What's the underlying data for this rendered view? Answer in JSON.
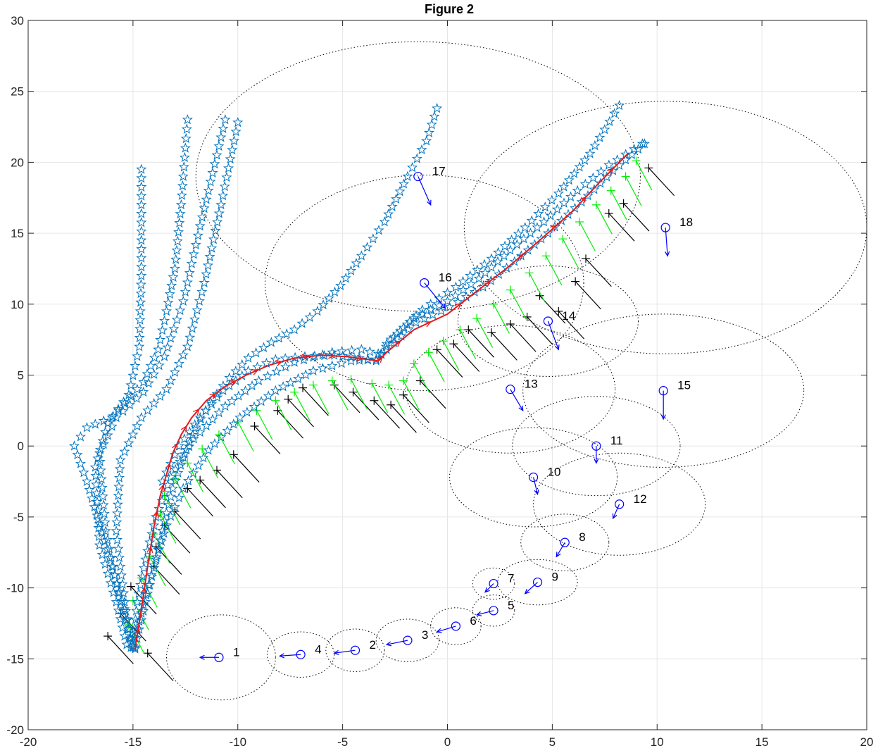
{
  "chart_data": {
    "type": "scatter",
    "title": "Figure 2",
    "xlabel": "",
    "ylabel": "",
    "xlim": [
      -20,
      20
    ],
    "ylim": [
      -20,
      30
    ],
    "grid": true,
    "x_ticks": [
      "-20",
      "-15",
      "-10",
      "-5",
      "0",
      "5",
      "10",
      "15",
      "20"
    ],
    "y_ticks": [
      "-20",
      "-15",
      "-10",
      "-5",
      "0",
      "5",
      "10",
      "15",
      "20",
      "25",
      "30"
    ],
    "colors": {
      "trajectory": "#e41a1c",
      "stars": "#0072bd",
      "landmark": "#0000ff",
      "green_markers": "#00ee00",
      "black_markers": "#000000",
      "ellipse": "#000000",
      "grid": "#e6e6e6"
    },
    "trajectory": {
      "x": [
        -14.9,
        -14.6,
        -14.3,
        -14.0,
        -13.7,
        -13.4,
        -13.1,
        -12.7,
        -12.2,
        -11.5,
        -10.6,
        -9.6,
        -8.5,
        -7.3,
        -6.0,
        -4.8,
        -3.3,
        -2.9,
        -1.6,
        0.0,
        1.3,
        2.8,
        4.4,
        6.0,
        7.2,
        8.6
      ],
      "y": [
        -14.3,
        -11.5,
        -8.5,
        -5.7,
        -3.5,
        -2.0,
        -0.5,
        0.8,
        2.0,
        3.2,
        4.2,
        5.0,
        5.7,
        6.2,
        6.4,
        6.3,
        6.0,
        6.6,
        8.2,
        9.3,
        10.8,
        12.5,
        14.5,
        16.6,
        18.5,
        20.6
      ]
    },
    "star_paths": [
      {
        "x": [
          -14.9,
          -15.4,
          -16.0,
          -16.6,
          -17.2,
          -17.8,
          -17.2,
          -16.0,
          -14.5,
          -13.8,
          -13.4,
          -13.0,
          -12.7,
          -12.4
        ],
        "y": [
          -14.3,
          -11.5,
          -8.5,
          -5.5,
          -2.5,
          0.0,
          1.3,
          2.0,
          4.5,
          6.8,
          9.5,
          12.5,
          17.0,
          23.0
        ]
      },
      {
        "x": [
          -15.3,
          -15.8,
          -16.6,
          -16.8,
          -16.2,
          -15.2,
          -14.7,
          -14.6,
          -14.6
        ],
        "y": [
          -14.0,
          -11.0,
          -7.0,
          -1.5,
          1.6,
          3.6,
          7.0,
          12.0,
          19.5
        ]
      },
      {
        "x": [
          -15.0,
          -15.6,
          -16.3,
          -16.6,
          -15.8,
          -14.5,
          -13.5,
          -12.6,
          -11.8,
          -10.6
        ],
        "y": [
          -14.2,
          -11.0,
          -6.0,
          -0.5,
          2.0,
          3.8,
          6.3,
          10.2,
          15.5,
          23.0
        ]
      },
      {
        "x": [
          -15.1,
          -15.4,
          -15.8,
          -15.6,
          -14.6,
          -13.4,
          -12.4,
          -11.6,
          -10.8,
          -10.0
        ],
        "y": [
          -14.2,
          -11.0,
          -6.0,
          -1.0,
          2.0,
          4.0,
          7.0,
          11.5,
          17.0,
          22.8
        ]
      },
      {
        "x": [
          -15.0,
          -14.8,
          -14.4,
          -13.9,
          -13.2,
          -12.1,
          -10.6,
          -9.0,
          -7.3,
          -5.5,
          -4.1,
          -3.3,
          -2.9,
          -1.6,
          0.0,
          1.5,
          3.0,
          4.6,
          6.2,
          7.7,
          9.3
        ],
        "y": [
          -14.1,
          -11.0,
          -8.0,
          -5.0,
          -2.2,
          0.5,
          2.8,
          4.6,
          5.9,
          6.6,
          6.8,
          6.5,
          7.2,
          9.0,
          10.2,
          11.8,
          13.8,
          15.8,
          18.0,
          19.8,
          21.3
        ]
      },
      {
        "x": [
          -15.0,
          -14.5,
          -14.0,
          -13.4,
          -12.6,
          -11.4,
          -9.9,
          -8.2,
          -6.4,
          -4.6,
          -3.4,
          -2.9,
          -1.5,
          0.1,
          1.7,
          3.2,
          4.8,
          6.4,
          7.9,
          9.4
        ],
        "y": [
          -14.1,
          -11.2,
          -8.4,
          -5.6,
          -3.0,
          -0.3,
          2.0,
          3.9,
          5.3,
          6.0,
          6.1,
          6.8,
          8.7,
          9.8,
          11.2,
          13.0,
          15.0,
          17.2,
          19.4,
          21.3
        ]
      },
      {
        "x": [
          -14.9,
          -14.4,
          -13.9,
          -13.5,
          -13.1,
          -12.6,
          -12.0,
          -11.3,
          -10.4,
          -9.5,
          -8.4,
          -7.3,
          -6.2,
          -5.1,
          -4.1,
          -3.0,
          -1.9,
          -1.0,
          -0.5
        ],
        "y": [
          -14.2,
          -11.0,
          -8.0,
          -5.3,
          -3.0,
          -0.8,
          1.3,
          3.1,
          4.8,
          6.2,
          7.3,
          8.2,
          9.5,
          11.3,
          13.4,
          15.8,
          19.0,
          21.5,
          23.8
        ]
      },
      {
        "x": [
          -13.6,
          -12.8,
          -11.8,
          -10.7,
          -9.5,
          -8.2,
          -6.8,
          -5.4,
          -4.2,
          -3.4,
          -2.7,
          -1.2,
          0.4,
          2.1,
          3.7,
          5.3,
          6.8,
          8.2
        ],
        "y": [
          -2.5,
          0.0,
          2.0,
          3.9,
          5.3,
          6.1,
          6.3,
          6.4,
          6.2,
          6.0,
          7.5,
          9.6,
          11.2,
          13.2,
          15.4,
          17.8,
          20.6,
          24.0
        ]
      }
    ],
    "landmarks": [
      {
        "label": "1",
        "x": -10.9,
        "y": -14.9,
        "dx": -0.9,
        "dy": 0.0,
        "ellipse": {
          "cx": -10.8,
          "cy": -14.9,
          "rx": 2.6,
          "ry": 3.0
        }
      },
      {
        "label": "2",
        "x": -4.4,
        "y": -14.4,
        "dx": -1.0,
        "dy": -0.2,
        "ellipse": {
          "cx": -4.4,
          "cy": -14.4,
          "rx": 1.4,
          "ry": 1.5
        }
      },
      {
        "label": "3",
        "x": -1.9,
        "y": -13.7,
        "dx": -1.0,
        "dy": -0.3,
        "ellipse": {
          "cx": -1.9,
          "cy": -13.7,
          "rx": 1.5,
          "ry": 1.5
        }
      },
      {
        "label": "4",
        "x": -7.0,
        "y": -14.7,
        "dx": -1.0,
        "dy": -0.1,
        "ellipse": {
          "cx": -7.0,
          "cy": -14.7,
          "rx": 1.6,
          "ry": 1.6
        }
      },
      {
        "label": "5",
        "x": 2.2,
        "y": -11.6,
        "dx": -0.8,
        "dy": -0.3,
        "ellipse": {
          "cx": 2.2,
          "cy": -11.6,
          "rx": 1.0,
          "ry": 1.1
        }
      },
      {
        "label": "6",
        "x": 0.4,
        "y": -12.7,
        "dx": -0.9,
        "dy": -0.4,
        "ellipse": {
          "cx": 0.4,
          "cy": -12.7,
          "rx": 1.2,
          "ry": 1.3
        }
      },
      {
        "label": "7",
        "x": 2.2,
        "y": -9.7,
        "dx": -0.4,
        "dy": -0.6,
        "ellipse": {
          "cx": 2.2,
          "cy": -9.7,
          "rx": 1.0,
          "ry": 1.1
        }
      },
      {
        "label": "8",
        "x": 5.6,
        "y": -6.8,
        "dx": -0.4,
        "dy": -1.0,
        "ellipse": {
          "cx": 5.6,
          "cy": -6.8,
          "rx": 2.1,
          "ry": 2.0
        }
      },
      {
        "label": "9",
        "x": 4.3,
        "y": -9.6,
        "dx": -0.6,
        "dy": -0.8,
        "ellipse": {
          "cx": 4.3,
          "cy": -9.6,
          "rx": 1.9,
          "ry": 1.6
        }
      },
      {
        "label": "10",
        "x": 4.1,
        "y": -2.2,
        "dx": 0.2,
        "dy": -1.2,
        "ellipse": {
          "cx": 4.1,
          "cy": -2.2,
          "rx": 4.0,
          "ry": 3.5
        }
      },
      {
        "label": "11",
        "x": 7.1,
        "y": 0.0,
        "dx": 0.0,
        "dy": -1.2,
        "ellipse": {
          "cx": 7.1,
          "cy": 0.0,
          "rx": 4.0,
          "ry": 3.5
        }
      },
      {
        "label": "12",
        "x": 8.2,
        "y": -4.1,
        "dx": -0.3,
        "dy": -1.0,
        "ellipse": {
          "cx": 8.2,
          "cy": -4.1,
          "rx": 4.1,
          "ry": 3.6
        }
      },
      {
        "label": "13",
        "x": 3.0,
        "y": 4.0,
        "dx": 0.6,
        "dy": -1.5,
        "ellipse": {
          "cx": 3.0,
          "cy": 4.0,
          "rx": 5.0,
          "ry": 4.5
        }
      },
      {
        "label": "14",
        "x": 4.8,
        "y": 8.8,
        "dx": 0.5,
        "dy": -2.0,
        "ellipse": {
          "cx": 4.8,
          "cy": 8.8,
          "rx": 4.3,
          "ry": 3.9
        }
      },
      {
        "label": "15",
        "x": 10.3,
        "y": 3.9,
        "dx": 0.0,
        "dy": -2.0,
        "ellipse": {
          "cx": 10.3,
          "cy": 3.9,
          "rx": 6.7,
          "ry": 5.4
        }
      },
      {
        "label": "16",
        "x": -1.1,
        "y": 11.5,
        "dx": 1.0,
        "dy": -1.8,
        "ellipse": {
          "cx": -1.1,
          "cy": 11.5,
          "rx": 7.6,
          "ry": 7.6
        }
      },
      {
        "label": "17",
        "x": -1.4,
        "y": 19.0,
        "dx": 0.6,
        "dy": -2.0,
        "ellipse": {
          "cx": -1.4,
          "cy": 19.0,
          "rx": 10.6,
          "ry": 9.5
        }
      },
      {
        "label": "18",
        "x": 10.4,
        "y": 15.4,
        "dx": 0.1,
        "dy": -2.0,
        "ellipse": {
          "cx": 10.4,
          "cy": 15.4,
          "rx": 9.6,
          "ry": 8.9
        }
      }
    ],
    "green_pose_markers": {
      "x": [
        -15.2,
        -15.0,
        -14.6,
        -14.2,
        -14.0,
        -13.7,
        -13.5,
        -13.0,
        -12.4,
        -11.7,
        -10.9,
        -10.0,
        -9.1,
        -8.2,
        -7.3,
        -6.4,
        -5.5,
        -4.6,
        -3.6,
        -2.8,
        -2.1,
        -1.6,
        -0.9,
        -0.2,
        0.6,
        1.4,
        2.2,
        3.0,
        3.9,
        4.7,
        5.5,
        6.3,
        7.1,
        7.8,
        8.5,
        9.0
      ],
      "y": [
        -12.6,
        -10.9,
        -9.3,
        -7.8,
        -6.2,
        -4.8,
        -3.5,
        -2.3,
        -1.2,
        -0.2,
        0.8,
        1.7,
        2.5,
        3.2,
        3.8,
        4.3,
        4.6,
        4.7,
        4.4,
        4.3,
        4.6,
        5.8,
        6.6,
        7.4,
        8.2,
        9.0,
        10.0,
        11.0,
        12.2,
        13.4,
        14.6,
        15.8,
        17.0,
        18.0,
        19.0,
        20.1
      ],
      "angle_deg": -70,
      "length": 2.2
    },
    "black_pose_markers": {
      "x": [
        -16.2,
        -15.6,
        -15.1,
        -14.3,
        -14.0,
        -13.9,
        -13.5,
        -13.0,
        -12.4,
        -11.8,
        -11.0,
        -10.2,
        -9.2,
        -8.1,
        -7.6,
        -6.9,
        -5.4,
        -4.5,
        -3.5,
        -2.7,
        -2.1,
        -1.3,
        -0.5,
        0.3,
        1.0,
        2.1,
        3.0,
        3.8,
        4.4,
        5.3,
        6.1,
        6.6,
        7.7,
        8.4,
        9.6
      ],
      "y": [
        -13.4,
        -11.8,
        -9.9,
        -14.6,
        -8.5,
        -7.1,
        -5.6,
        -4.6,
        -3.0,
        -2.4,
        -1.7,
        -0.6,
        1.4,
        2.5,
        3.3,
        4.1,
        4.3,
        3.8,
        3.2,
        2.9,
        3.6,
        4.6,
        6.8,
        7.2,
        8.2,
        8.0,
        8.6,
        9.1,
        10.6,
        9.5,
        11.6,
        13.2,
        16.4,
        17.1,
        19.6
      ],
      "angle_deg": -58,
      "length": 2.3
    }
  }
}
